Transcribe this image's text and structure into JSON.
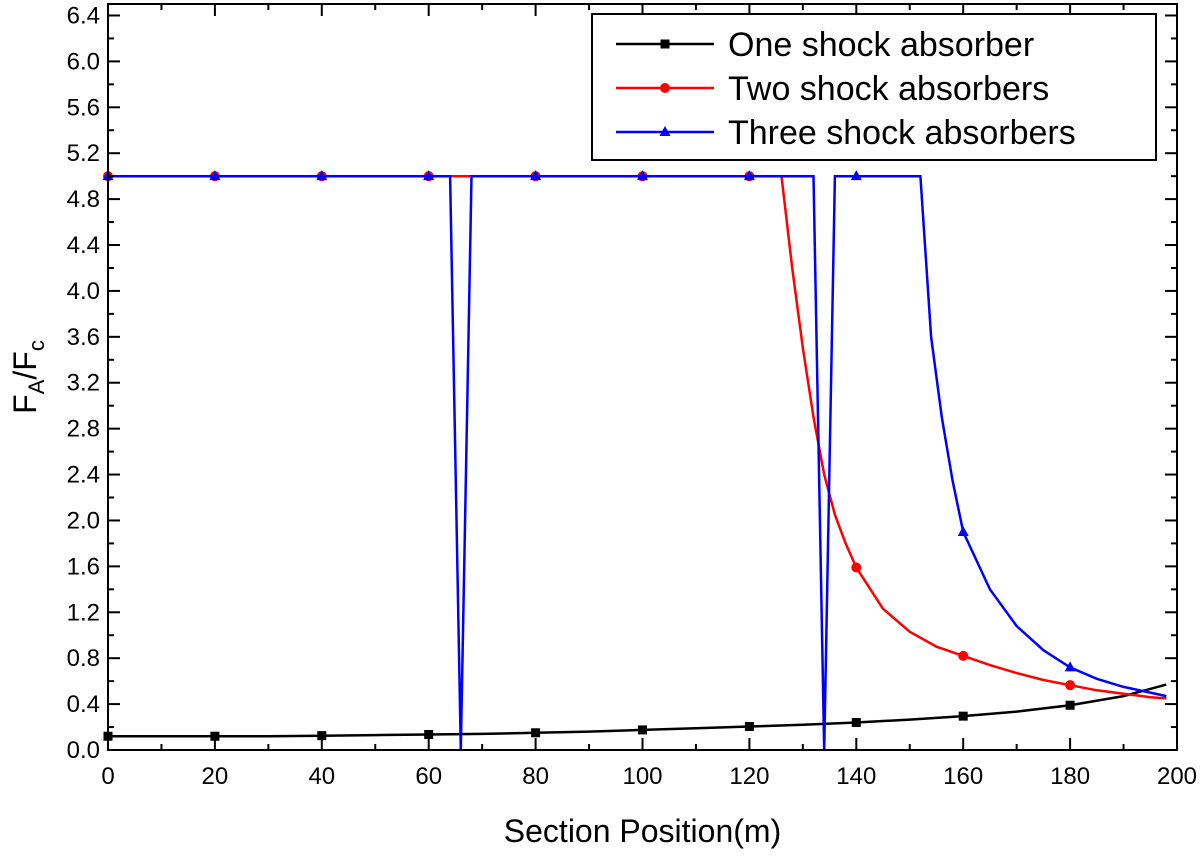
{
  "chart_data": {
    "type": "line",
    "xlabel": "Section Position(m)",
    "ylabel": {
      "base": "F",
      "sub1": "A",
      "sep": "/F",
      "sub2": "c"
    },
    "xlim": [
      0,
      200
    ],
    "ylim": [
      0.0,
      6.5
    ],
    "xticks": [
      0,
      20,
      40,
      60,
      80,
      100,
      120,
      140,
      160,
      180,
      200
    ],
    "xtick_labels": [
      "0",
      "20",
      "40",
      "60",
      "80",
      "100",
      "120",
      "140",
      "160",
      "180",
      "200"
    ],
    "yticks": [
      0.0,
      0.4,
      0.8,
      1.2,
      1.6,
      2.0,
      2.4,
      2.8,
      3.2,
      3.6,
      4.0,
      4.4,
      4.8,
      5.2,
      5.6,
      6.0,
      6.4
    ],
    "ytick_labels": [
      "0.0",
      "0.4",
      "0.8",
      "1.2",
      "1.6",
      "2.0",
      "2.4",
      "2.8",
      "3.2",
      "3.6",
      "4.0",
      "4.4",
      "4.8",
      "5.2",
      "5.6",
      "6.0",
      "6.4"
    ],
    "legend_position": "top-right",
    "grid": false,
    "series": [
      {
        "name": "One shock absorber",
        "color": "#000000",
        "marker": "square",
        "x": [
          0,
          10,
          20,
          30,
          40,
          50,
          60,
          70,
          80,
          90,
          100,
          110,
          120,
          130,
          140,
          150,
          160,
          170,
          180,
          190,
          198
        ],
        "y": [
          0.12,
          0.12,
          0.12,
          0.12,
          0.125,
          0.13,
          0.135,
          0.14,
          0.15,
          0.16,
          0.175,
          0.19,
          0.205,
          0.22,
          0.24,
          0.265,
          0.295,
          0.335,
          0.39,
          0.47,
          0.57
        ],
        "marker_x": [
          0,
          20,
          40,
          60,
          80,
          100,
          120,
          140,
          160,
          180
        ],
        "marker_y": [
          0.12,
          0.12,
          0.125,
          0.135,
          0.15,
          0.175,
          0.205,
          0.24,
          0.295,
          0.39
        ]
      },
      {
        "name": "Two shock absorbers",
        "color": "#ff0000",
        "marker": "circle",
        "x": [
          0,
          126,
          128,
          130,
          132,
          134,
          136,
          138,
          140,
          145,
          150,
          155,
          160,
          165,
          170,
          175,
          180,
          185,
          190,
          195,
          198
        ],
        "y": [
          5.0,
          5.0,
          4.2,
          3.5,
          2.9,
          2.4,
          2.05,
          1.8,
          1.59,
          1.23,
          1.03,
          0.9,
          0.82,
          0.74,
          0.67,
          0.61,
          0.565,
          0.52,
          0.49,
          0.46,
          0.45
        ],
        "marker_x": [
          0,
          20,
          40,
          60,
          80,
          100,
          120,
          140,
          160,
          180
        ],
        "marker_y": [
          5.0,
          5.0,
          5.0,
          5.0,
          5.0,
          5.0,
          5.0,
          1.59,
          0.82,
          0.565
        ]
      },
      {
        "name": "Three shock absorbers",
        "color": "#0000ff",
        "marker": "triangle",
        "x": [
          0,
          64,
          66,
          68,
          132,
          134,
          136,
          152,
          154,
          156,
          158,
          160,
          165,
          170,
          175,
          180,
          185,
          190,
          195,
          198
        ],
        "y": [
          5.0,
          5.0,
          0.0,
          5.0,
          5.0,
          0.0,
          5.0,
          5.0,
          3.6,
          2.9,
          2.35,
          1.9,
          1.4,
          1.08,
          0.87,
          0.72,
          0.62,
          0.55,
          0.5,
          0.47
        ],
        "marker_x": [
          0,
          20,
          40,
          60,
          80,
          100,
          120,
          140,
          160,
          180
        ],
        "marker_y": [
          5.0,
          5.0,
          5.0,
          5.0,
          5.0,
          5.0,
          5.0,
          5.0,
          1.9,
          0.72
        ]
      }
    ]
  }
}
